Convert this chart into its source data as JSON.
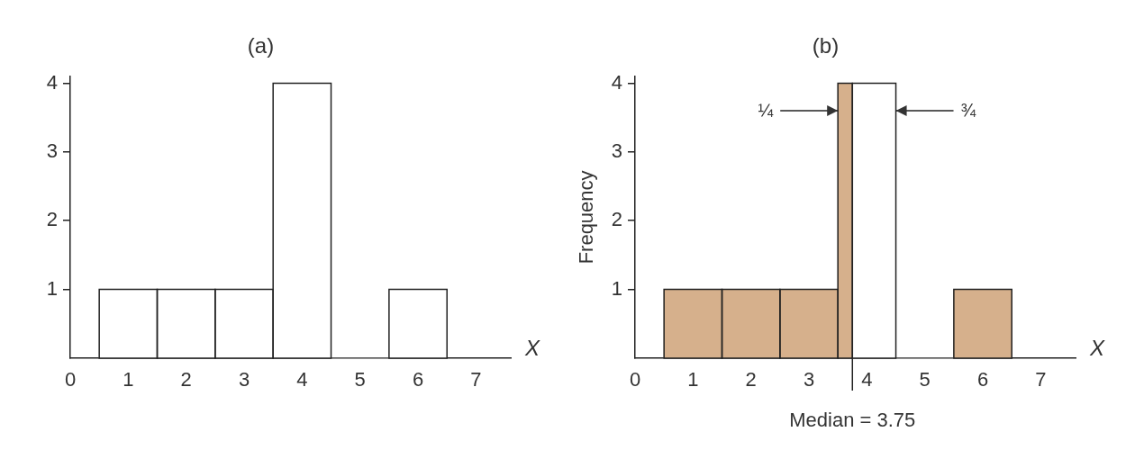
{
  "chart_data": [
    {
      "type": "histogram",
      "title": "(a)",
      "xlabel": "X",
      "bins": [
        0.5,
        1.5,
        2.5,
        3.5,
        4.5,
        5.5,
        6.5
      ],
      "values": [
        1,
        1,
        1,
        4,
        0,
        1
      ],
      "color": "#ffffff",
      "xlim": [
        0,
        7.6
      ],
      "xticks": [
        0,
        1,
        2,
        3,
        4,
        5,
        6,
        7
      ],
      "ylim": [
        0,
        4.1
      ],
      "yticks": [
        1,
        2,
        3,
        4
      ]
    },
    {
      "type": "histogram",
      "title": "(b)",
      "xlabel": "X",
      "ylabel": "Frequency",
      "bins": [
        0.5,
        1.5,
        2.5,
        3.5,
        3.75,
        4.5,
        5.5,
        6.5
      ],
      "values": [
        1,
        1,
        1,
        4,
        4,
        0,
        1
      ],
      "colors": [
        "#d6b08c",
        "#d6b08c",
        "#d6b08c",
        "#d6b08c",
        "#ffffff",
        "#ffffff",
        "#d6b08c"
      ],
      "xlim": [
        0,
        7.6
      ],
      "xticks": [
        0,
        1,
        2,
        3,
        4,
        5,
        6,
        7
      ],
      "ylim": [
        0,
        4.1
      ],
      "yticks": [
        1,
        2,
        3,
        4
      ],
      "ref_lines": [
        {
          "axis": "x",
          "value": 3.75,
          "label": "Median = 3.75"
        }
      ],
      "annotations": [
        {
          "text": "¼",
          "x": 3.5,
          "y": 3.6
        },
        {
          "text": "¾",
          "x": 4.5,
          "y": 3.6
        }
      ]
    }
  ]
}
